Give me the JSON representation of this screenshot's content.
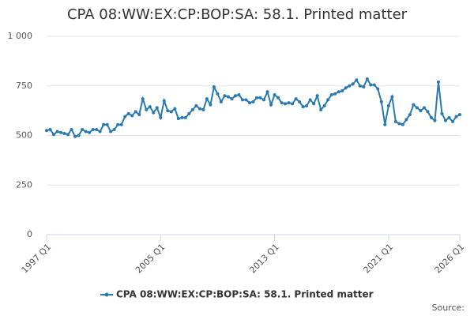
{
  "chart_data": {
    "type": "line",
    "title": "CPA 08:WW:EX:CP:BOP:SA: 58.1. Printed matter",
    "categories": [
      "1997 Q1",
      null,
      null,
      null,
      null,
      null,
      null,
      null,
      null,
      null,
      null,
      null,
      null,
      null,
      null,
      null,
      null,
      null,
      null,
      null,
      null,
      null,
      null,
      null,
      null,
      null,
      null,
      null,
      null,
      null,
      null,
      null,
      "2005 Q1",
      null,
      null,
      null,
      null,
      null,
      null,
      null,
      null,
      null,
      null,
      null,
      null,
      null,
      null,
      null,
      null,
      null,
      null,
      null,
      null,
      null,
      null,
      null,
      null,
      null,
      null,
      null,
      null,
      null,
      null,
      null,
      "2013 Q1",
      null,
      null,
      null,
      null,
      null,
      null,
      null,
      null,
      null,
      null,
      null,
      null,
      null,
      null,
      null,
      null,
      null,
      null,
      null,
      null,
      null,
      null,
      null,
      null,
      null,
      null,
      null,
      null,
      null,
      null,
      null,
      "2021 Q1",
      null,
      null,
      null,
      null,
      null,
      null,
      null,
      null,
      null,
      null,
      null,
      null,
      null,
      null,
      null,
      null,
      null,
      null,
      null,
      "2026 Q1"
    ],
    "series": [
      {
        "name": "CPA 08:WW:EX:CP:BOP:SA: 58.1. Printed matter",
        "color": "#2a7ab0",
        "values": [
          525,
          530,
          505,
          520,
          515,
          510,
          505,
          530,
          495,
          500,
          530,
          520,
          515,
          530,
          530,
          520,
          555,
          555,
          520,
          530,
          555,
          555,
          595,
          610,
          600,
          620,
          605,
          685,
          630,
          645,
          615,
          640,
          590,
          675,
          625,
          620,
          635,
          585,
          590,
          590,
          610,
          630,
          650,
          635,
          630,
          685,
          655,
          745,
          710,
          670,
          700,
          695,
          685,
          700,
          705,
          680,
          680,
          665,
          670,
          690,
          690,
          680,
          720,
          655,
          705,
          690,
          665,
          660,
          665,
          660,
          685,
          670,
          645,
          650,
          680,
          660,
          700,
          630,
          650,
          680,
          705,
          710,
          720,
          725,
          740,
          750,
          760,
          780,
          750,
          745,
          785,
          755,
          755,
          735,
          670,
          555,
          650,
          695,
          570,
          560,
          555,
          580,
          605,
          655,
          640,
          625,
          640,
          620,
          590,
          575,
          770,
          610,
          575,
          590,
          570,
          595,
          605
        ]
      }
    ],
    "ylim": [
      0,
      1000
    ],
    "yticks": [
      0,
      250,
      500,
      750,
      {
        "value": 1000,
        "label": "1 000"
      }
    ],
    "grid": true,
    "legend": "bottom",
    "source": "Source:"
  }
}
